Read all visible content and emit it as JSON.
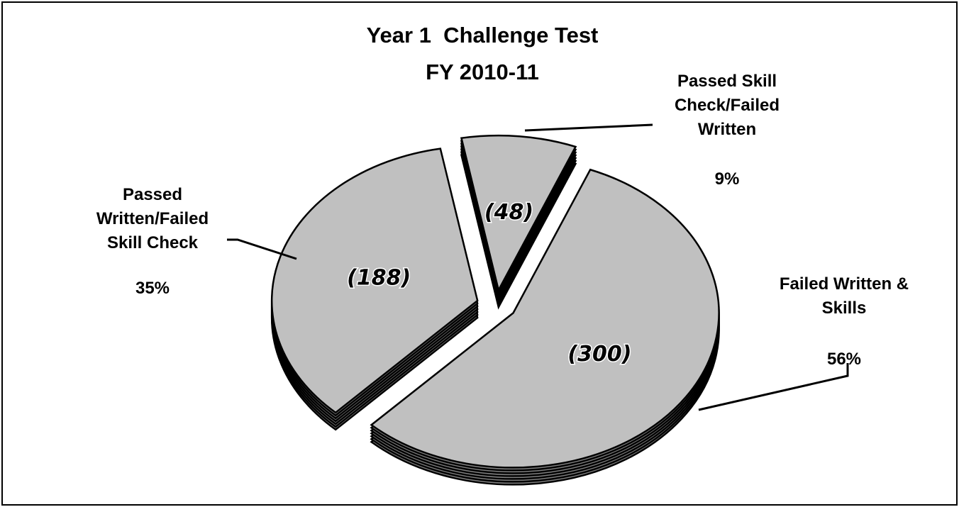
{
  "chart_data": {
    "type": "pie",
    "title": "Year 1  Challenge Test",
    "subtitle": "FY 2010-11",
    "categories": [
      "Failed Written & Skills",
      "Passed Written/Failed Skill Check",
      "Passed Skill Check/Failed Written"
    ],
    "values": [
      56,
      35,
      9
    ],
    "value_labels": [
      "56%",
      "35%",
      "9%"
    ],
    "counts": [
      300,
      188,
      48
    ],
    "count_labels": [
      "(300)",
      "(188)",
      "(48)"
    ],
    "color": "#c0c0c0",
    "side_color": "#808080"
  }
}
